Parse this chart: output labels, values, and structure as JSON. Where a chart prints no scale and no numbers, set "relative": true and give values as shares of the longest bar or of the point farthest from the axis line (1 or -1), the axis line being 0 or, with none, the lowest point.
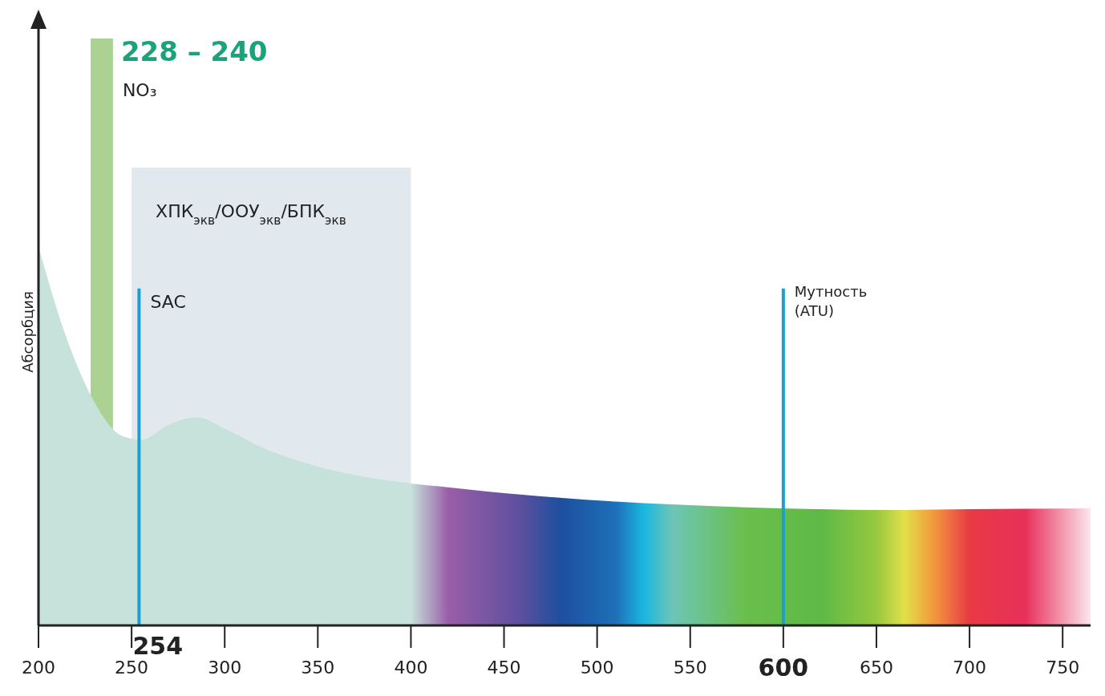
{
  "chart_data": {
    "type": "area",
    "relative": true,
    "ylabel": "Абсорбция",
    "series": [
      {
        "x": [
          200,
          215,
          230,
          245,
          255,
          270,
          285,
          300,
          320,
          350,
          400,
          420,
          460,
          480,
          510,
          525,
          540,
          580,
          620,
          650,
          665,
          680,
          700,
          730,
          765
        ],
        "values": [
          1,
          0.76,
          0.59,
          0.5,
          0.49,
          0.53,
          0.55,
          0.52,
          0.47,
          0.42,
          0.375,
          0.365,
          0.345,
          0.337,
          0.327,
          0.323,
          0.32,
          0.312,
          0.307,
          0.305,
          0.305,
          0.306,
          0.307,
          0.308,
          0.309
        ],
        "colors": [
          "#c6e2da",
          "#c6e2da",
          "#c6e2da",
          "#c6e2da",
          "#c6e2da",
          "#c6e2da",
          "#c6e2da",
          "#c6e2da",
          "#c6e2da",
          "#c6e2da",
          "#c6e2da",
          "#9a5ea8",
          "#5a4f9e",
          "#1d4f9f",
          "#1e6fb8",
          "#1ab6e0",
          "#6cc5b8",
          "#6abf4b",
          "#5eb947",
          "#96c83e",
          "#e2e04a",
          "#f29c3e",
          "#e83a44",
          "#e8305a",
          "#fbe6ee"
        ]
      }
    ],
    "xlim": [
      200,
      765
    ],
    "xticks": [
      200,
      250,
      300,
      350,
      400,
      450,
      500,
      550,
      600,
      650,
      700,
      750
    ],
    "bands": [
      {
        "axis": "x",
        "from": 228,
        "to": 240,
        "label": "228 – 240",
        "color": "#a8d08d"
      },
      {
        "axis": "x",
        "from": 250,
        "to": 400,
        "label": "ХПК$_{экв}$/ООУ$_{экв}$/БПК$_{экв}$",
        "color": "#dde5eb"
      }
    ],
    "ref_lines": [
      {
        "axis": "x",
        "value": 254,
        "label": "SAC",
        "color": "#1b9fd0"
      },
      {
        "axis": "x",
        "value": 600,
        "label": "Мутность (ATU)",
        "color": "#1b9fd0"
      }
    ],
    "annotations": [
      "NO₃",
      "254"
    ]
  }
}
